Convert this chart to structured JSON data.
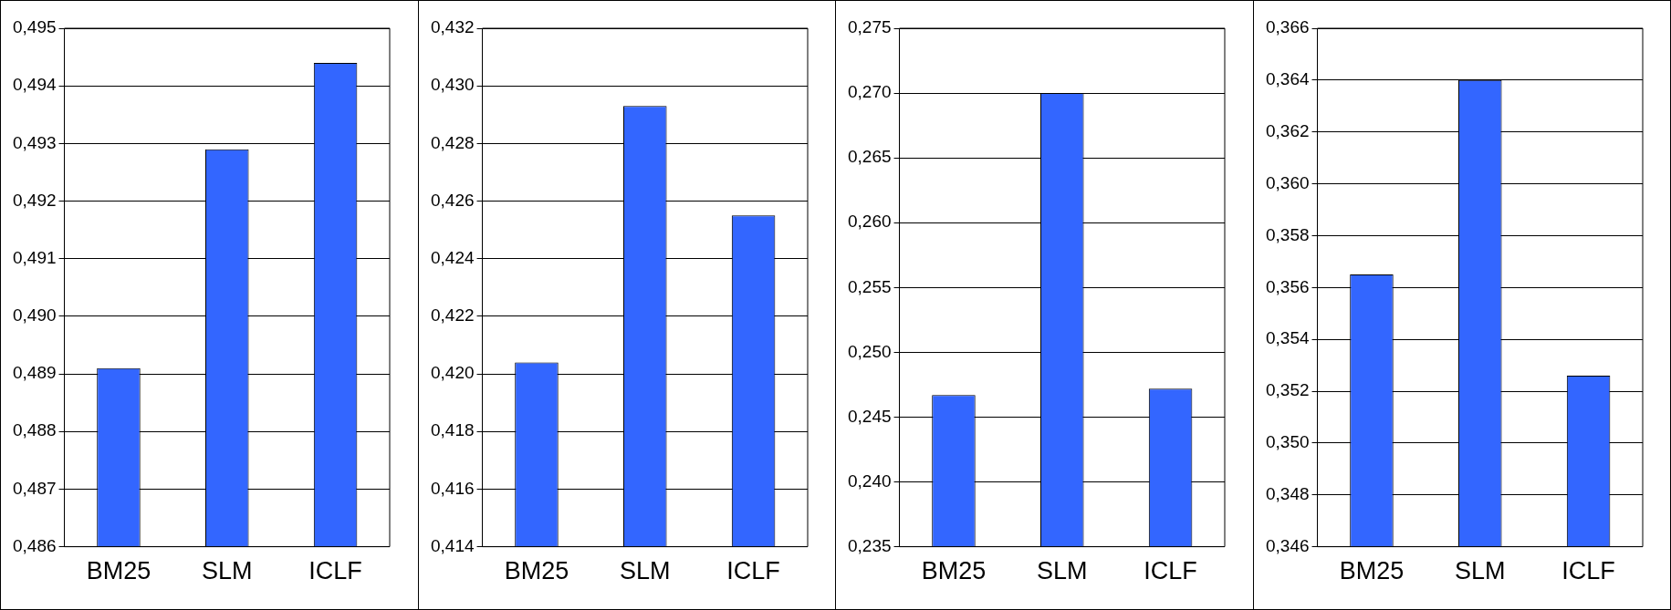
{
  "chart_data": [
    {
      "type": "bar",
      "categories": [
        "BM25",
        "SLM",
        "ICLF"
      ],
      "values": [
        0.4891,
        0.4929,
        0.4944
      ],
      "color": "#3366ff",
      "ylim": [
        0.486,
        0.495
      ],
      "yticks": [
        {
          "value": 0.486,
          "label": "0,486"
        },
        {
          "value": 0.487,
          "label": "0,487"
        },
        {
          "value": 0.488,
          "label": "0,488"
        },
        {
          "value": 0.489,
          "label": "0,489"
        },
        {
          "value": 0.49,
          "label": "0,490"
        },
        {
          "value": 0.491,
          "label": "0,491"
        },
        {
          "value": 0.492,
          "label": "0,492"
        },
        {
          "value": 0.493,
          "label": "0,493"
        },
        {
          "value": 0.494,
          "label": "0,494"
        },
        {
          "value": 0.495,
          "label": "0,495"
        }
      ],
      "grid": "y",
      "legend": false
    },
    {
      "type": "bar",
      "categories": [
        "BM25",
        "SLM",
        "ICLF"
      ],
      "values": [
        0.4204,
        0.4293,
        0.4255
      ],
      "color": "#3366ff",
      "ylim": [
        0.414,
        0.432
      ],
      "yticks": [
        {
          "value": 0.414,
          "label": "0,414"
        },
        {
          "value": 0.416,
          "label": "0,416"
        },
        {
          "value": 0.418,
          "label": "0,418"
        },
        {
          "value": 0.42,
          "label": "0,420"
        },
        {
          "value": 0.422,
          "label": "0,422"
        },
        {
          "value": 0.424,
          "label": "0,424"
        },
        {
          "value": 0.426,
          "label": "0,426"
        },
        {
          "value": 0.428,
          "label": "0,428"
        },
        {
          "value": 0.43,
          "label": "0,430"
        },
        {
          "value": 0.432,
          "label": "0,432"
        }
      ],
      "grid": "y",
      "legend": false
    },
    {
      "type": "bar",
      "categories": [
        "BM25",
        "SLM",
        "ICLF"
      ],
      "values": [
        0.2467,
        0.27,
        0.2472
      ],
      "color": "#3366ff",
      "ylim": [
        0.235,
        0.275
      ],
      "yticks": [
        {
          "value": 0.235,
          "label": "0,235"
        },
        {
          "value": 0.24,
          "label": "0,240"
        },
        {
          "value": 0.245,
          "label": "0,245"
        },
        {
          "value": 0.25,
          "label": "0,250"
        },
        {
          "value": 0.255,
          "label": "0,255"
        },
        {
          "value": 0.26,
          "label": "0,260"
        },
        {
          "value": 0.265,
          "label": "0,265"
        },
        {
          "value": 0.27,
          "label": "0,270"
        },
        {
          "value": 0.275,
          "label": "0,275"
        }
      ],
      "grid": "y",
      "legend": false
    },
    {
      "type": "bar",
      "categories": [
        "BM25",
        "SLM",
        "ICLF"
      ],
      "values": [
        0.3565,
        0.364,
        0.3526
      ],
      "color": "#3366ff",
      "ylim": [
        0.346,
        0.366
      ],
      "yticks": [
        {
          "value": 0.346,
          "label": "0,346"
        },
        {
          "value": 0.348,
          "label": "0,348"
        },
        {
          "value": 0.35,
          "label": "0,350"
        },
        {
          "value": 0.352,
          "label": "0,352"
        },
        {
          "value": 0.354,
          "label": "0,354"
        },
        {
          "value": 0.356,
          "label": "0,356"
        },
        {
          "value": 0.358,
          "label": "0,358"
        },
        {
          "value": 0.36,
          "label": "0,360"
        },
        {
          "value": 0.362,
          "label": "0,362"
        },
        {
          "value": 0.364,
          "label": "0,364"
        },
        {
          "value": 0.366,
          "label": "0,366"
        }
      ],
      "grid": "y",
      "legend": false
    }
  ]
}
